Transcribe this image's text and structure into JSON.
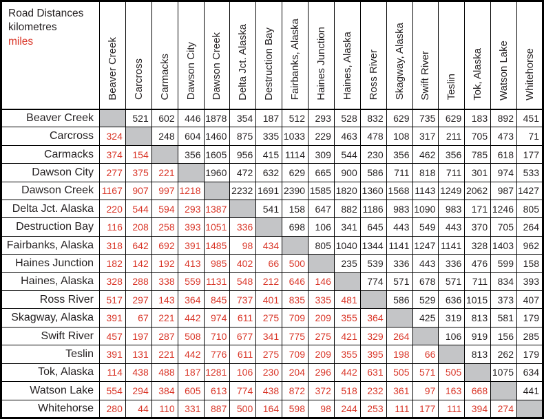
{
  "header": {
    "title": "Road Distances",
    "unit_km_label": "kilometres",
    "unit_miles_label": "miles"
  },
  "colors": {
    "miles_red": "#d93527",
    "distance_black": "#231f20",
    "diagonal_gray": "#c4c5c7",
    "grid_black": "#000000"
  },
  "chart_data": {
    "type": "table",
    "title": "Road Distances",
    "upper_triangle_units": "kilometres",
    "lower_triangle_units": "miles",
    "locations": [
      "Beaver Creek",
      "Carcross",
      "Carmacks",
      "Dawson City",
      "Dawson Creek",
      "Delta Jct. Alaska",
      "Destruction Bay",
      "Fairbanks, Alaska",
      "Haines Junction",
      "Haines, Alaska",
      "Ross River",
      "Skagway,  Alaska",
      "Swift River",
      "Teslin",
      "Tok, Alaska",
      "Watson Lake",
      "Whitehorse"
    ],
    "matrix": [
      [
        null,
        521,
        602,
        446,
        1878,
        354,
        187,
        512,
        293,
        528,
        832,
        629,
        735,
        629,
        183,
        892,
        451
      ],
      [
        324,
        null,
        248,
        604,
        1460,
        875,
        335,
        1033,
        229,
        463,
        478,
        108,
        317,
        211,
        705,
        473,
        71
      ],
      [
        374,
        154,
        null,
        356,
        1605,
        956,
        415,
        1114,
        309,
        544,
        230,
        356,
        462,
        356,
        785,
        618,
        177
      ],
      [
        277,
        375,
        221,
        null,
        1960,
        472,
        632,
        629,
        665,
        900,
        586,
        711,
        818,
        711,
        301,
        974,
        533
      ],
      [
        1167,
        907,
        997,
        1218,
        null,
        2232,
        1691,
        2390,
        1585,
        1820,
        1360,
        1568,
        1143,
        1249,
        2062,
        987,
        1427
      ],
      [
        220,
        544,
        594,
        293,
        1387,
        null,
        541,
        158,
        647,
        882,
        1186,
        983,
        1090,
        983,
        171,
        1246,
        805
      ],
      [
        116,
        208,
        258,
        393,
        1051,
        336,
        null,
        698,
        106,
        341,
        645,
        443,
        549,
        443,
        370,
        705,
        264
      ],
      [
        318,
        642,
        692,
        391,
        1485,
        98,
        434,
        null,
        805,
        1040,
        1344,
        1141,
        1247,
        1141,
        328,
        1403,
        962
      ],
      [
        182,
        142,
        192,
        413,
        985,
        402,
        66,
        500,
        null,
        235,
        539,
        336,
        443,
        336,
        476,
        599,
        158
      ],
      [
        328,
        288,
        338,
        559,
        1131,
        548,
        212,
        646,
        146,
        null,
        774,
        571,
        678,
        571,
        711,
        834,
        393
      ],
      [
        517,
        297,
        143,
        364,
        845,
        737,
        401,
        835,
        335,
        481,
        null,
        586,
        529,
        636,
        1015,
        373,
        407
      ],
      [
        391,
        67,
        221,
        442,
        974,
        611,
        275,
        709,
        209,
        355,
        364,
        null,
        425,
        319,
        813,
        581,
        179
      ],
      [
        457,
        197,
        287,
        508,
        710,
        677,
        341,
        775,
        275,
        421,
        329,
        264,
        null,
        106,
        919,
        156,
        285
      ],
      [
        391,
        131,
        221,
        442,
        776,
        611,
        275,
        709,
        209,
        355,
        395,
        198,
        66,
        null,
        813,
        262,
        179
      ],
      [
        114,
        438,
        488,
        187,
        1281,
        106,
        230,
        204,
        296,
        442,
        631,
        505,
        571,
        505,
        null,
        1075,
        634
      ],
      [
        554,
        294,
        384,
        605,
        613,
        774,
        438,
        872,
        372,
        518,
        232,
        361,
        97,
        163,
        668,
        null,
        441
      ],
      [
        280,
        44,
        110,
        331,
        887,
        500,
        164,
        598,
        98,
        244,
        253,
        111,
        177,
        111,
        394,
        274,
        null
      ]
    ]
  }
}
